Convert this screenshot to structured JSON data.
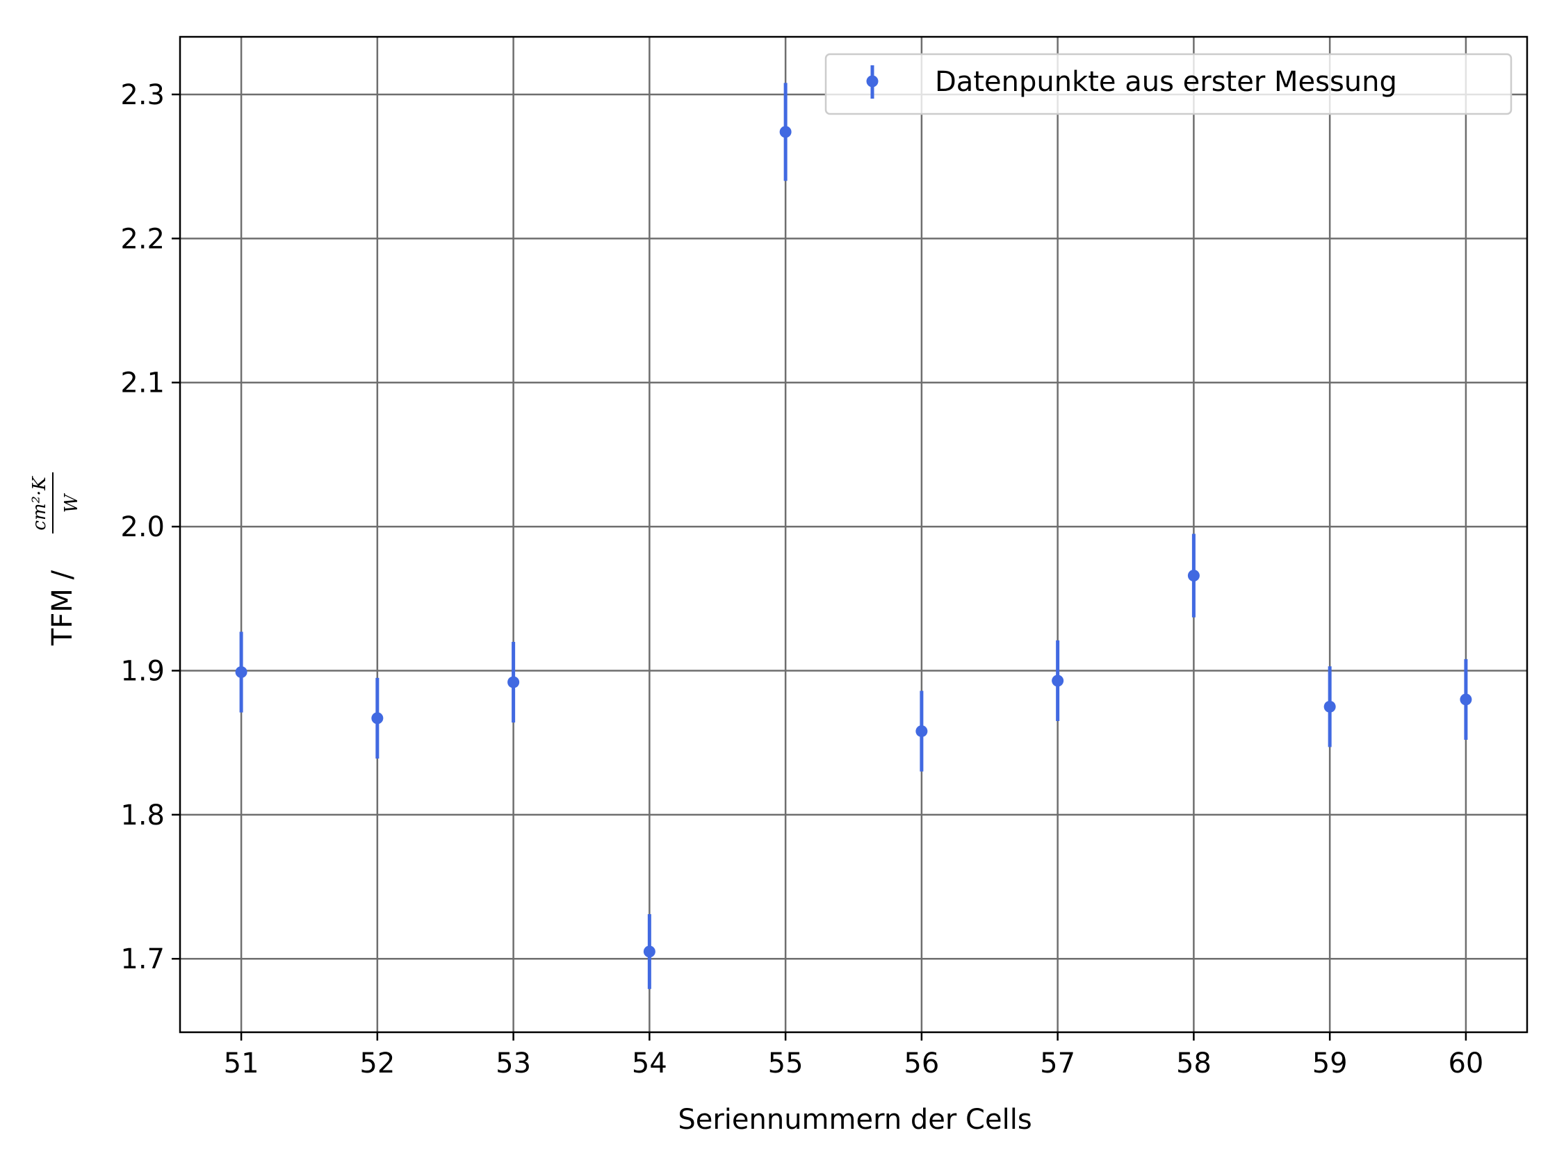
{
  "chart_data": {
    "type": "scatter",
    "xlabel": "Seriennummern der Cells",
    "ylabel": {
      "prefix": "TFM /",
      "fraction_numerator": "cm²·K",
      "fraction_denominator": "W"
    },
    "xlim": [
      50.55,
      60.45
    ],
    "ylim": [
      1.649,
      2.34
    ],
    "x_ticks": [
      "51",
      "52",
      "53",
      "54",
      "55",
      "56",
      "57",
      "58",
      "59",
      "60"
    ],
    "y_ticks": [
      "1.7",
      "1.8",
      "1.9",
      "2.0",
      "2.1",
      "2.2",
      "2.3"
    ],
    "grid": true,
    "legend_position": "top-right",
    "series": [
      {
        "name": "Datenpunkte aus erster Messung",
        "color": "#4169e1",
        "points": [
          {
            "x": 51,
            "y": 1.899,
            "err": 0.028
          },
          {
            "x": 52,
            "y": 1.867,
            "err": 0.028
          },
          {
            "x": 53,
            "y": 1.892,
            "err": 0.028
          },
          {
            "x": 54,
            "y": 1.705,
            "err": 0.026
          },
          {
            "x": 55,
            "y": 2.274,
            "err": 0.034
          },
          {
            "x": 56,
            "y": 1.858,
            "err": 0.028
          },
          {
            "x": 57,
            "y": 1.893,
            "err": 0.028
          },
          {
            "x": 58,
            "y": 1.966,
            "err": 0.029
          },
          {
            "x": 59,
            "y": 1.875,
            "err": 0.028
          },
          {
            "x": 60,
            "y": 1.88,
            "err": 0.028
          }
        ]
      }
    ]
  }
}
